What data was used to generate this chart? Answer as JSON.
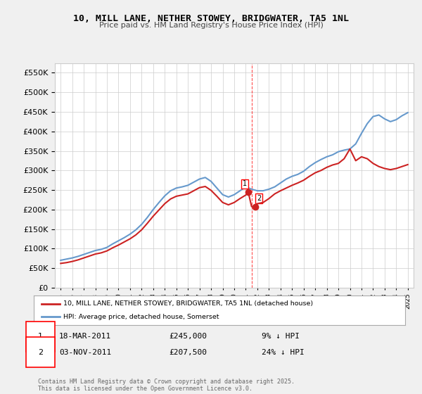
{
  "title": "10, MILL LANE, NETHER STOWEY, BRIDGWATER, TA5 1NL",
  "subtitle": "Price paid vs. HM Land Registry's House Price Index (HPI)",
  "ylabel_ticks": [
    "£0",
    "£50K",
    "£100K",
    "£150K",
    "£200K",
    "£250K",
    "£300K",
    "£350K",
    "£400K",
    "£450K",
    "£500K",
    "£550K"
  ],
  "ylim": [
    0,
    575000
  ],
  "background_color": "#f0f0f0",
  "plot_bg_color": "#ffffff",
  "sale1": {
    "date": "2011-03-18",
    "price": 245000,
    "label": "1"
  },
  "sale2": {
    "date": "2011-11-03",
    "price": 207500,
    "label": "2"
  },
  "sale1_x": 2011.21,
  "sale2_x": 2011.84,
  "vline_x": 2011.5,
  "legend_label_red": "10, MILL LANE, NETHER STOWEY, BRIDGWATER, TA5 1NL (detached house)",
  "legend_label_blue": "HPI: Average price, detached house, Somerset",
  "annotation1": "1   18-MAR-2011      £245,000      9% ↓ HPI",
  "annotation2": "2   03-NOV-2011      £207,500      24% ↓ HPI",
  "footnote": "Contains HM Land Registry data © Crown copyright and database right 2025.\nThis data is licensed under the Open Government Licence v3.0.",
  "hpi_data": {
    "years": [
      1995,
      1995.5,
      1996,
      1996.5,
      1997,
      1997.5,
      1998,
      1998.5,
      1999,
      1999.5,
      2000,
      2000.5,
      2001,
      2001.5,
      2002,
      2002.5,
      2003,
      2003.5,
      2004,
      2004.5,
      2005,
      2005.5,
      2006,
      2006.5,
      2007,
      2007.5,
      2008,
      2008.5,
      2009,
      2009.5,
      2010,
      2010.5,
      2011,
      2011.5,
      2012,
      2012.5,
      2013,
      2013.5,
      2014,
      2014.5,
      2015,
      2015.5,
      2016,
      2016.5,
      2017,
      2017.5,
      2018,
      2018.5,
      2019,
      2019.5,
      2020,
      2020.5,
      2021,
      2021.5,
      2022,
      2022.5,
      2023,
      2023.5,
      2024,
      2024.5,
      2025
    ],
    "values": [
      70000,
      73000,
      76000,
      80000,
      85000,
      90000,
      95000,
      98000,
      103000,
      112000,
      120000,
      128000,
      137000,
      148000,
      162000,
      180000,
      200000,
      218000,
      235000,
      248000,
      255000,
      258000,
      262000,
      270000,
      278000,
      282000,
      272000,
      255000,
      238000,
      232000,
      238000,
      248000,
      258000,
      252000,
      248000,
      248000,
      252000,
      258000,
      268000,
      278000,
      285000,
      290000,
      298000,
      310000,
      320000,
      328000,
      335000,
      340000,
      348000,
      352000,
      355000,
      368000,
      395000,
      420000,
      438000,
      442000,
      432000,
      425000,
      430000,
      440000,
      448000
    ]
  },
  "price_data": {
    "years": [
      1995,
      1995.5,
      1996,
      1996.5,
      1997,
      1997.5,
      1998,
      1998.5,
      1999,
      1999.5,
      2000,
      2000.5,
      2001,
      2001.5,
      2002,
      2002.5,
      2003,
      2003.5,
      2004,
      2004.5,
      2005,
      2005.5,
      2006,
      2006.5,
      2007,
      2007.5,
      2008,
      2008.5,
      2009,
      2009.5,
      2010,
      2010.5,
      2011,
      2011.21,
      2011.5,
      2011.84,
      2012,
      2012.5,
      2013,
      2013.5,
      2014,
      2014.5,
      2015,
      2015.5,
      2016,
      2016.5,
      2017,
      2017.5,
      2018,
      2018.5,
      2019,
      2019.5,
      2020,
      2020.5,
      2021,
      2021.5,
      2022,
      2022.5,
      2023,
      2023.5,
      2024,
      2024.5,
      2025
    ],
    "values": [
      62000,
      64000,
      67000,
      71000,
      76000,
      81000,
      86000,
      89000,
      94000,
      102000,
      109000,
      117000,
      125000,
      135000,
      148000,
      165000,
      183000,
      199000,
      215000,
      227000,
      234000,
      237000,
      240000,
      248000,
      256000,
      259000,
      249000,
      234000,
      218000,
      212000,
      218000,
      228000,
      237000,
      245000,
      207500,
      207500,
      215000,
      218000,
      228000,
      240000,
      248000,
      255000,
      262000,
      268000,
      275000,
      285000,
      294000,
      300000,
      308000,
      314000,
      318000,
      330000,
      355000,
      325000,
      335000,
      330000,
      318000,
      310000,
      305000,
      302000,
      305000,
      310000,
      315000
    ]
  }
}
